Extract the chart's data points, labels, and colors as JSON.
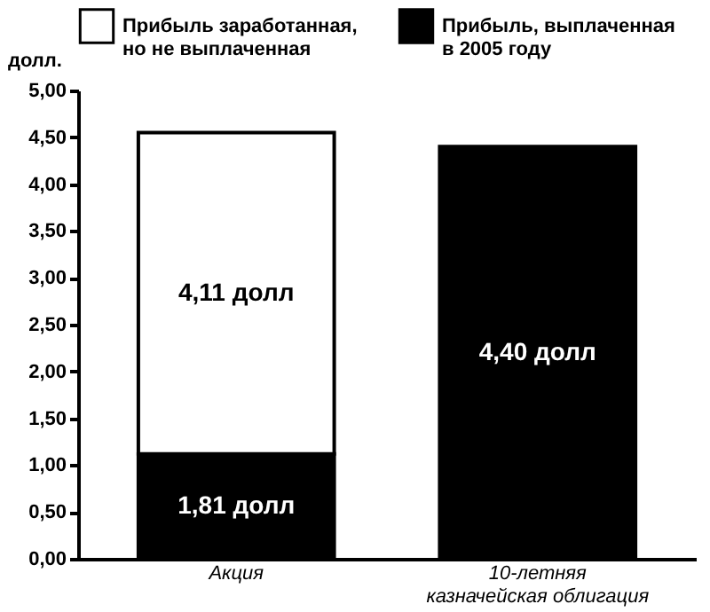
{
  "chart_data": {
    "type": "bar",
    "stacked": true,
    "ylabel": "долл.",
    "categories": [
      "Акция",
      "10-летняя\nказначейская облигация"
    ],
    "series": [
      {
        "name": "Прибыль, выплаченная\nв 2005 году",
        "color": "#000000",
        "values": [
          1.12,
          4.4
        ],
        "value_labels": [
          null,
          "4,40 долл"
        ]
      },
      {
        "name": "Прибыль заработанная,\nно не выплаченная",
        "color": "#ffffff",
        "values": [
          3.43,
          null
        ]
      }
    ],
    "annotations": [
      "4,11 долл",
      "1,81 долл"
    ],
    "ylim": [
      0,
      5
    ],
    "yticks": [
      {
        "value": 0,
        "label": "0,00"
      },
      {
        "value": 0.5,
        "label": "0,50"
      },
      {
        "value": 1,
        "label": "1,00"
      },
      {
        "value": 1.5,
        "label": "1,50"
      },
      {
        "value": 2,
        "label": "2,00"
      },
      {
        "value": 2.5,
        "label": "2,50"
      },
      {
        "value": 3,
        "label": "3,00"
      },
      {
        "value": 3.5,
        "label": "3,50"
      },
      {
        "value": 4,
        "label": "4,00"
      },
      {
        "value": 4.5,
        "label": "4,50"
      },
      {
        "value": 5,
        "label": "5,00"
      }
    ],
    "grid": false,
    "legend": "top"
  }
}
